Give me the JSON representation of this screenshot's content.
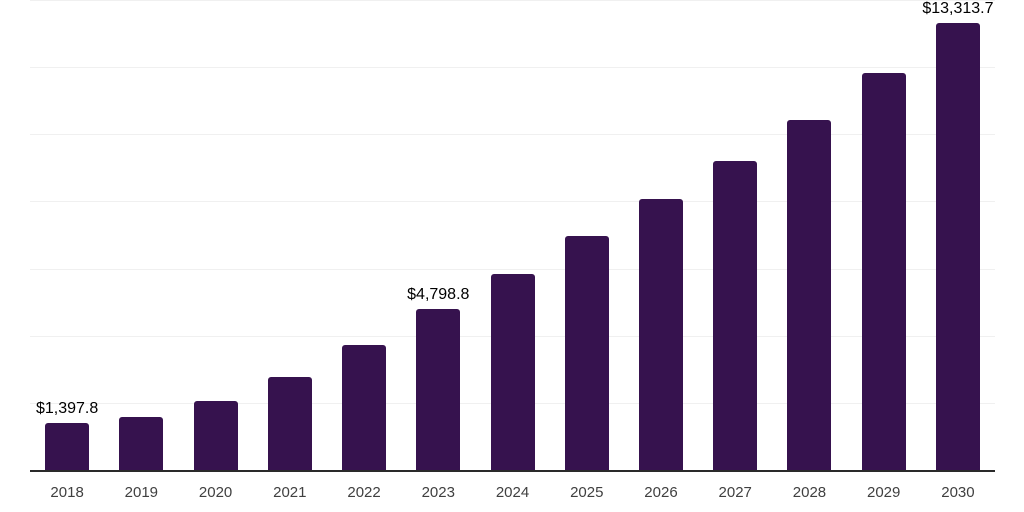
{
  "chart_data": {
    "type": "bar",
    "title": "",
    "xlabel": "",
    "ylabel": "",
    "categories": [
      "2018",
      "2019",
      "2020",
      "2021",
      "2022",
      "2023",
      "2024",
      "2025",
      "2026",
      "2027",
      "2028",
      "2029",
      "2030"
    ],
    "values": [
      1397.8,
      1575,
      2045,
      2760,
      3715,
      4798.8,
      5830,
      6960,
      8060,
      9195,
      10420,
      11820,
      13313.7
    ],
    "data_labels": {
      "2018": "$1,397.8",
      "2023": "$4,798.8",
      "2030": "$13,313.7"
    },
    "ylim": [
      0,
      14000
    ],
    "gridline_step": 2000,
    "grid": true,
    "legend": "none",
    "colors": {
      "bar": "#36124E",
      "axis": "#2a2a2a",
      "gridline": "#f0f0f0",
      "data_label": "#000000",
      "tick_label": "#404040",
      "background": "#ffffff"
    }
  }
}
